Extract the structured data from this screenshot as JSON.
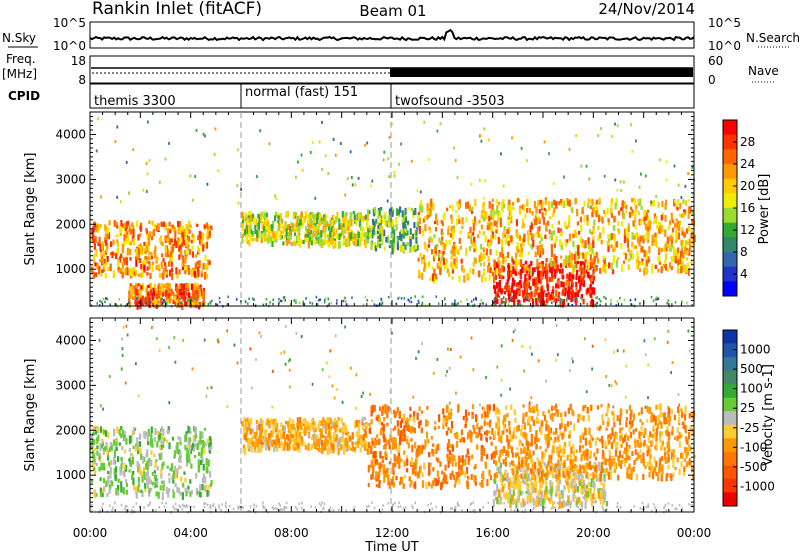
{
  "header": {
    "station": "Rankin Inlet (fitACF)",
    "beam": "Beam 01",
    "date": "24/Nov/2014"
  },
  "noise_panel": {
    "left_label": "N.Sky",
    "right_label": "N.Search",
    "left_ticks": [
      "10^5",
      "10^0"
    ],
    "right_ticks": [
      "10^5",
      "10^0"
    ]
  },
  "freq_panel": {
    "left_label_line1": "Freq.",
    "left_label_line2": "[MHz]",
    "left_ticks": [
      "18",
      "8"
    ],
    "right_label": "Nave",
    "right_ticks": [
      "60",
      "0"
    ]
  },
  "cpid": {
    "label": "CPID",
    "modes": [
      {
        "name": "themis 3300",
        "start": 0,
        "end": 6
      },
      {
        "name": "normal (fast) 151",
        "start": 6,
        "end": 12
      },
      {
        "name": "twofsound -3503",
        "start": 12,
        "end": 24
      }
    ]
  },
  "power_panel": {
    "ylabel": "Slant Range [km]",
    "cbar_label": "Power [dB]",
    "cbar_ticks": [
      "28",
      "24",
      "20",
      "16",
      "12",
      "8",
      "4"
    ],
    "cbar_colors": [
      "#ff0000",
      "#ff3300",
      "#ff6600",
      "#ff9900",
      "#ffcc00",
      "#eeee00",
      "#99dd33",
      "#33aa33",
      "#338866",
      "#3366aa",
      "#2233cc",
      "#0000ff"
    ]
  },
  "velocity_panel": {
    "ylabel": "Slant Range [km]",
    "cbar_label": "Velocity [m s-1]",
    "cbar_ticks": [
      "1000",
      "500",
      "100",
      "25",
      "-25",
      "-100",
      "-500",
      "-1000"
    ],
    "cbar_colors": [
      "#1133aa",
      "#2255aa",
      "#337799",
      "#448866",
      "#33aa33",
      "#66cc33",
      "#bbbbbb",
      "#ffcc33",
      "#ff9900",
      "#ff7700",
      "#ff5500",
      "#ff3300",
      "#ee0000"
    ]
  },
  "x_axis": {
    "label": "Time UT",
    "ticks": [
      "00:00",
      "04:00",
      "08:00",
      "12:00",
      "16:00",
      "20:00",
      "00:00"
    ]
  },
  "chart_data": {
    "type": "heatmap",
    "title": "Rankin Inlet (fitACF) Beam 01 24/Nov/2014",
    "xlabel": "Time UT",
    "ylabel": "Slant Range [km]",
    "xlim": [
      0,
      24
    ],
    "ylim": [
      180,
      4500
    ],
    "yticks": [
      1000,
      2000,
      3000,
      4000
    ],
    "xticks": [
      "00:00",
      "04:00",
      "08:00",
      "12:00",
      "16:00",
      "20:00",
      "00:00"
    ],
    "panels": [
      {
        "name": "Power",
        "colorbar_label": "Power [dB]",
        "colorbar_ticks": [
          4,
          8,
          12,
          16,
          20,
          24,
          28
        ],
        "colorbar_range": [
          0,
          30
        ],
        "echo_regions": [
          {
            "t0": 0.0,
            "t1": 4.8,
            "r0": 900,
            "r1": 2100,
            "value": 22
          },
          {
            "t0": 1.5,
            "t1": 4.5,
            "r0": 250,
            "r1": 700,
            "value": 24
          },
          {
            "t0": 6.0,
            "t1": 11.0,
            "r0": 1600,
            "r1": 2300,
            "value": 16
          },
          {
            "t0": 11.0,
            "t1": 13.0,
            "r0": 1500,
            "r1": 2400,
            "value": 12
          },
          {
            "t0": 13.0,
            "t1": 16.0,
            "r0": 800,
            "r1": 2600,
            "value": 20
          },
          {
            "t0": 16.0,
            "t1": 20.0,
            "r0": 300,
            "r1": 1200,
            "value": 28
          },
          {
            "t0": 16.0,
            "t1": 24.0,
            "r0": 1000,
            "r1": 2600,
            "value": 20
          }
        ]
      },
      {
        "name": "Velocity",
        "colorbar_label": "Velocity [m s-1]",
        "colorbar_ticks": [
          -1000,
          -500,
          -100,
          -25,
          25,
          100,
          500,
          1000
        ],
        "colorbar_range": [
          -1200,
          1200
        ],
        "echo_regions": [
          {
            "t0": 0.0,
            "t1": 4.8,
            "r0": 600,
            "r1": 2100,
            "value": 100
          },
          {
            "t0": 6.0,
            "t1": 11.0,
            "r0": 1600,
            "r1": 2300,
            "value": -300
          },
          {
            "t0": 11.0,
            "t1": 16.0,
            "r0": 800,
            "r1": 2600,
            "value": -500
          },
          {
            "t0": 16.0,
            "t1": 20.5,
            "r0": 400,
            "r1": 1300,
            "value": -100
          },
          {
            "t0": 16.0,
            "t1": 24.0,
            "r0": 1000,
            "r1": 2600,
            "value": -400
          }
        ]
      }
    ]
  }
}
